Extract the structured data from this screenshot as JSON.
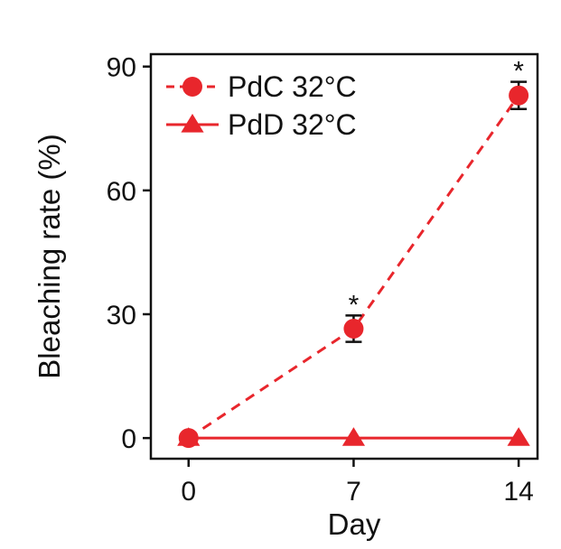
{
  "chart_data": {
    "type": "line",
    "xlabel": "Day",
    "ylabel": "Bleaching rate (%)",
    "x": [
      0,
      7,
      14
    ],
    "x_tick_labels": [
      "0",
      "7",
      "14"
    ],
    "y_ticks": [
      0,
      30,
      60,
      90
    ],
    "y_tick_labels": [
      "0",
      "30",
      "60",
      "90"
    ],
    "ylim": [
      -5,
      93
    ],
    "xlim": [
      -1.6,
      14.8
    ],
    "grid": false,
    "legend_position": "top-left",
    "series": [
      {
        "name": "PdC 32°C",
        "marker": "circle",
        "line_style": "dashed",
        "color": "#e8262c",
        "values": [
          0,
          26.5,
          83
        ],
        "error": [
          0,
          3.2,
          3.3
        ],
        "significance": [
          "",
          "*",
          "*"
        ]
      },
      {
        "name": "PdD 32°C",
        "marker": "triangle",
        "line_style": "solid",
        "color": "#e8262c",
        "values": [
          0,
          0,
          0
        ],
        "error": [
          0,
          0,
          0
        ],
        "significance": [
          "",
          "",
          ""
        ]
      }
    ]
  }
}
